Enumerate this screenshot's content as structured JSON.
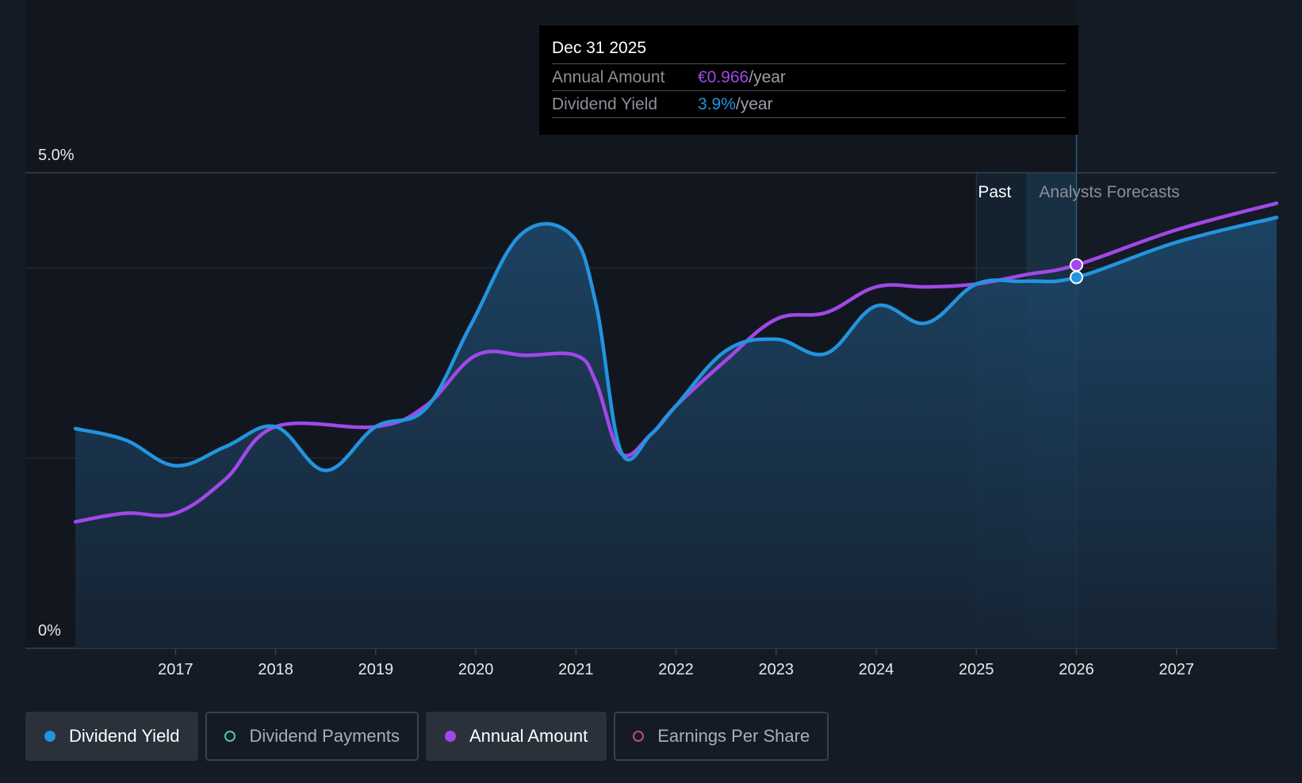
{
  "chart_data": {
    "type": "line",
    "y_axis": {
      "ticks": [
        "5.0%",
        "0%"
      ],
      "ylim": [
        0,
        5.0
      ],
      "unit": "%"
    },
    "x_axis": {
      "ticks": [
        "2017",
        "2018",
        "2019",
        "2020",
        "2021",
        "2022",
        "2023",
        "2024",
        "2025",
        "2026",
        "2027"
      ],
      "xlim": [
        2015.5,
        2028.0
      ]
    },
    "regions": {
      "past_label": "Past",
      "forecast_label": "Analysts Forecasts",
      "forecast_start": 2026.0
    },
    "series": [
      {
        "name": "Dividend Yield",
        "color": "#2394df",
        "area": true,
        "points": [
          [
            2016.0,
            2.31
          ],
          [
            2016.5,
            2.19
          ],
          [
            2017.0,
            1.92
          ],
          [
            2017.5,
            2.12
          ],
          [
            2018.0,
            2.33
          ],
          [
            2018.5,
            1.87
          ],
          [
            2019.0,
            2.33
          ],
          [
            2019.5,
            2.52
          ],
          [
            2019.95,
            3.4
          ],
          [
            2020.45,
            4.35
          ],
          [
            2020.95,
            4.35
          ],
          [
            2021.2,
            3.62
          ],
          [
            2021.45,
            2.07
          ],
          [
            2021.75,
            2.25
          ],
          [
            2022.0,
            2.55
          ],
          [
            2022.5,
            3.13
          ],
          [
            2023.0,
            3.25
          ],
          [
            2023.5,
            3.1
          ],
          [
            2024.0,
            3.6
          ],
          [
            2024.5,
            3.42
          ],
          [
            2025.0,
            3.83
          ],
          [
            2025.5,
            3.86
          ],
          [
            2026.0,
            3.9
          ],
          [
            2027.0,
            4.27
          ],
          [
            2028.0,
            4.53
          ]
        ]
      },
      {
        "name": "Annual Amount",
        "color": "#a148e8",
        "area": false,
        "points": [
          [
            2016.0,
            1.33
          ],
          [
            2016.5,
            1.42
          ],
          [
            2017.0,
            1.42
          ],
          [
            2017.5,
            1.78
          ],
          [
            2018.0,
            2.33
          ],
          [
            2019.0,
            2.33
          ],
          [
            2019.5,
            2.55
          ],
          [
            2020.0,
            3.08
          ],
          [
            2020.5,
            3.08
          ],
          [
            2021.0,
            3.08
          ],
          [
            2021.2,
            2.8
          ],
          [
            2021.45,
            2.05
          ],
          [
            2021.75,
            2.25
          ],
          [
            2022.0,
            2.55
          ],
          [
            2022.5,
            3.03
          ],
          [
            2023.0,
            3.46
          ],
          [
            2023.5,
            3.53
          ],
          [
            2024.0,
            3.8
          ],
          [
            2024.5,
            3.8
          ],
          [
            2025.0,
            3.83
          ],
          [
            2025.5,
            3.93
          ],
          [
            2026.0,
            4.03
          ],
          [
            2027.0,
            4.4
          ],
          [
            2028.0,
            4.68
          ]
        ]
      }
    ],
    "tooltip": {
      "date": "Dec 31 2025",
      "rows": [
        {
          "label": "Annual Amount",
          "value": "€0.966",
          "unit": "/year",
          "color": "#a148e8"
        },
        {
          "label": "Dividend Yield",
          "value": "3.9%",
          "unit": "/year",
          "color": "#2394df"
        }
      ]
    },
    "legend": [
      {
        "label": "Dividend Yield",
        "color": "#2394df",
        "active": true
      },
      {
        "label": "Dividend Payments",
        "color": "#4fc3b8",
        "active": false
      },
      {
        "label": "Annual Amount",
        "color": "#a148e8",
        "active": true
      },
      {
        "label": "Earnings Per Share",
        "color": "#c04a7c",
        "active": false
      }
    ],
    "grid": true,
    "legend_placement": "bottom-left"
  }
}
